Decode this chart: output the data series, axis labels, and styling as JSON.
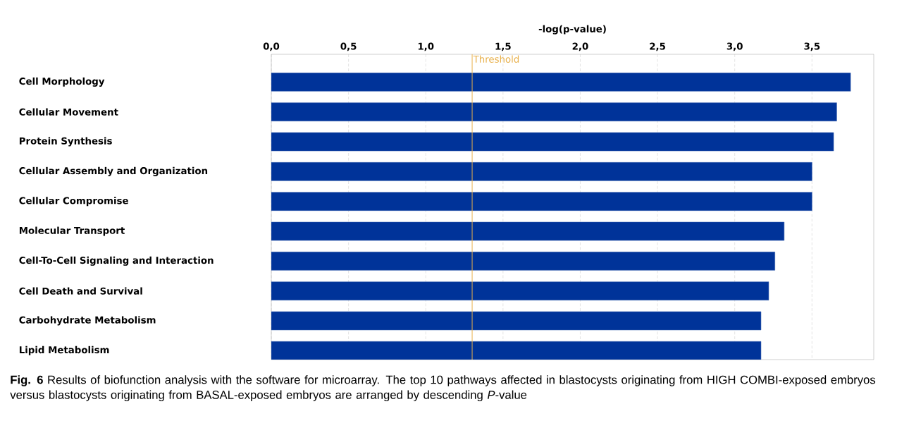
{
  "chart_data": {
    "type": "bar",
    "orientation": "horizontal",
    "xlabel": "-log(p-value)",
    "categories": [
      "Cell Morphology",
      "Cellular Movement",
      "Protein Synthesis",
      "Cellular Assembly and Organization",
      "Cellular Compromise",
      "Molecular Transport",
      "Cell-To-Cell Signaling and Interaction",
      "Cell Death and Survival",
      "Carbohydrate Metabolism",
      "Lipid Metabolism"
    ],
    "values": [
      3.75,
      3.66,
      3.64,
      3.5,
      3.5,
      3.32,
      3.26,
      3.22,
      3.17,
      3.17
    ],
    "color": "#003399",
    "xlim": [
      0,
      3.9
    ],
    "xticks": [
      {
        "value": 0,
        "label": "0,0"
      },
      {
        "value": 0.5,
        "label": "0,5"
      },
      {
        "value": 1,
        "label": "1,0"
      },
      {
        "value": 1.5,
        "label": "1,5"
      },
      {
        "value": 2,
        "label": "2,0"
      },
      {
        "value": 2.5,
        "label": "2,5"
      },
      {
        "value": 3,
        "label": "3,0"
      },
      {
        "value": 3.5,
        "label": "3,5"
      }
    ],
    "grid": "x",
    "ref_lines": [
      {
        "axis": "x",
        "value": 1.3,
        "label": "Threshold",
        "color": "#e8b04a"
      }
    ],
    "annotations": [
      "**Fig. 6** Results of biofunction analysis with the software for microarray. The top 10 pathways affected in blastocysts originating from HIGH COMBI-exposed embryos versus blastocysts originating from BASAL-exposed embryos are arranged by descending *P*-value"
    ]
  }
}
